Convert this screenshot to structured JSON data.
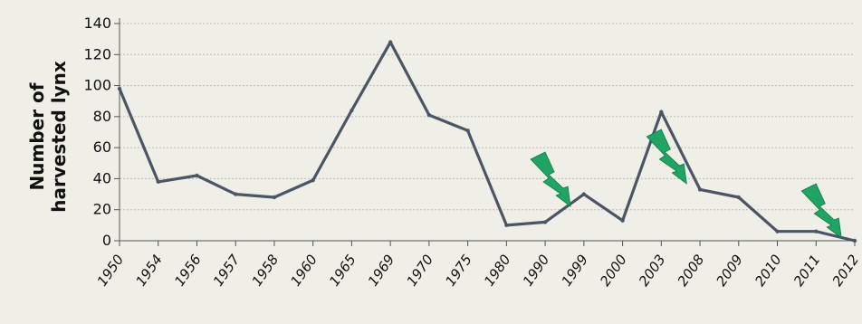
{
  "chart_data": {
    "type": "line",
    "ylabel_lines": [
      "Number of",
      "harvested lynx"
    ],
    "ylim": [
      0,
      140
    ],
    "yticks": [
      0,
      20,
      40,
      60,
      80,
      100,
      120,
      140
    ],
    "grid": true,
    "categories": [
      "1950",
      "1954",
      "1956",
      "1957",
      "1958",
      "1960",
      "1965",
      "1969",
      "1970",
      "1975",
      "1980",
      "1990",
      "1999",
      "2000",
      "2003",
      "2008",
      "2009",
      "2010",
      "2011",
      "2012"
    ],
    "series": [
      {
        "values": [
          98,
          38,
          42,
          30,
          28,
          39,
          84,
          128,
          81,
          71,
          10,
          12,
          30,
          13,
          83,
          33,
          28,
          6,
          6,
          0
        ]
      }
    ],
    "line_color": "#4a5565",
    "icon_color": "#1fa463",
    "annotations": [
      {
        "icon": "lightning-bolt-icon",
        "near": "1990"
      },
      {
        "icon": "lightning-bolt-icon",
        "near": "2003"
      },
      {
        "icon": "lightning-bolt-icon",
        "near": "2011"
      }
    ]
  }
}
